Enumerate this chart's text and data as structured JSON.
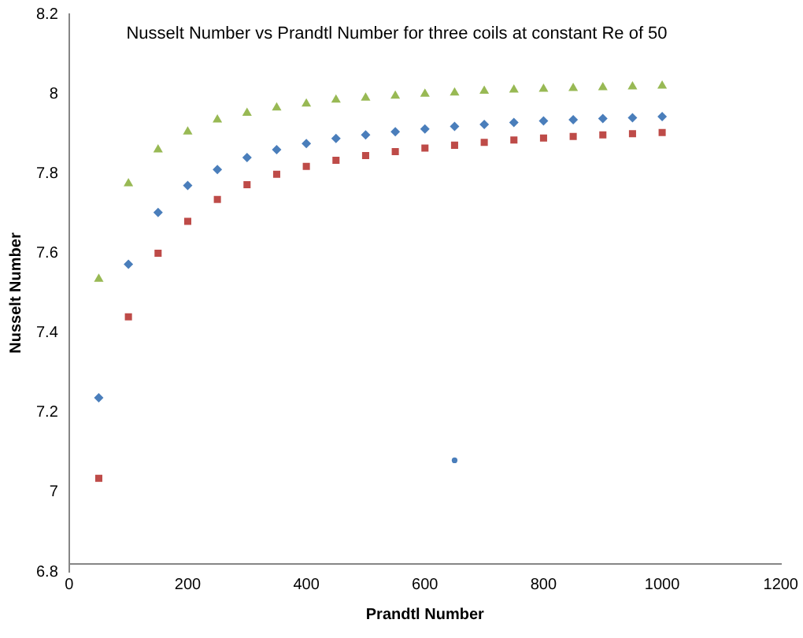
{
  "chart_data": {
    "type": "scatter",
    "title": "Nusselt Number vs Prandtl Number for three coils at constant Re of 50",
    "xlabel": "Prandtl Number",
    "ylabel": "Nusselt Number",
    "x": [
      50,
      100,
      150,
      200,
      250,
      300,
      350,
      400,
      450,
      500,
      550,
      600,
      650,
      700,
      750,
      800,
      850,
      900,
      950,
      1000
    ],
    "series": [
      {
        "color": "#4a7ebb",
        "marker": "diamond",
        "values": [
          7.237,
          7.572,
          7.702,
          7.77,
          7.81,
          7.84,
          7.86,
          7.875,
          7.888,
          7.897,
          7.905,
          7.912,
          7.918,
          7.923,
          7.928,
          7.932,
          7.935,
          7.938,
          7.94,
          7.943
        ]
      },
      {
        "color": "#be4b48",
        "marker": "square",
        "values": [
          7.035,
          7.44,
          7.6,
          7.68,
          7.735,
          7.772,
          7.798,
          7.818,
          7.833,
          7.845,
          7.855,
          7.864,
          7.871,
          7.878,
          7.884,
          7.889,
          7.893,
          7.897,
          7.9,
          7.903
        ]
      },
      {
        "color": "#98b954",
        "marker": "triangle",
        "values": [
          7.535,
          7.775,
          7.86,
          7.905,
          7.935,
          7.952,
          7.965,
          7.975,
          7.985,
          7.99,
          7.995,
          8.0,
          8.003,
          8.007,
          8.01,
          8.012,
          8.014,
          8.016,
          8.018,
          8.02
        ]
      },
      {
        "color": "#4a7ebb",
        "marker": "circle",
        "x": [
          650
        ],
        "values": [
          7.08
        ]
      }
    ],
    "xlim": [
      0,
      1200
    ],
    "xticks": [
      0,
      200,
      400,
      600,
      800,
      1000,
      1200
    ],
    "ylim": [
      6.8,
      8.2
    ],
    "yticks": [
      6.8,
      7,
      7.2,
      7.4,
      7.6,
      7.8,
      8,
      8.2
    ],
    "grid": false,
    "legend": false
  }
}
